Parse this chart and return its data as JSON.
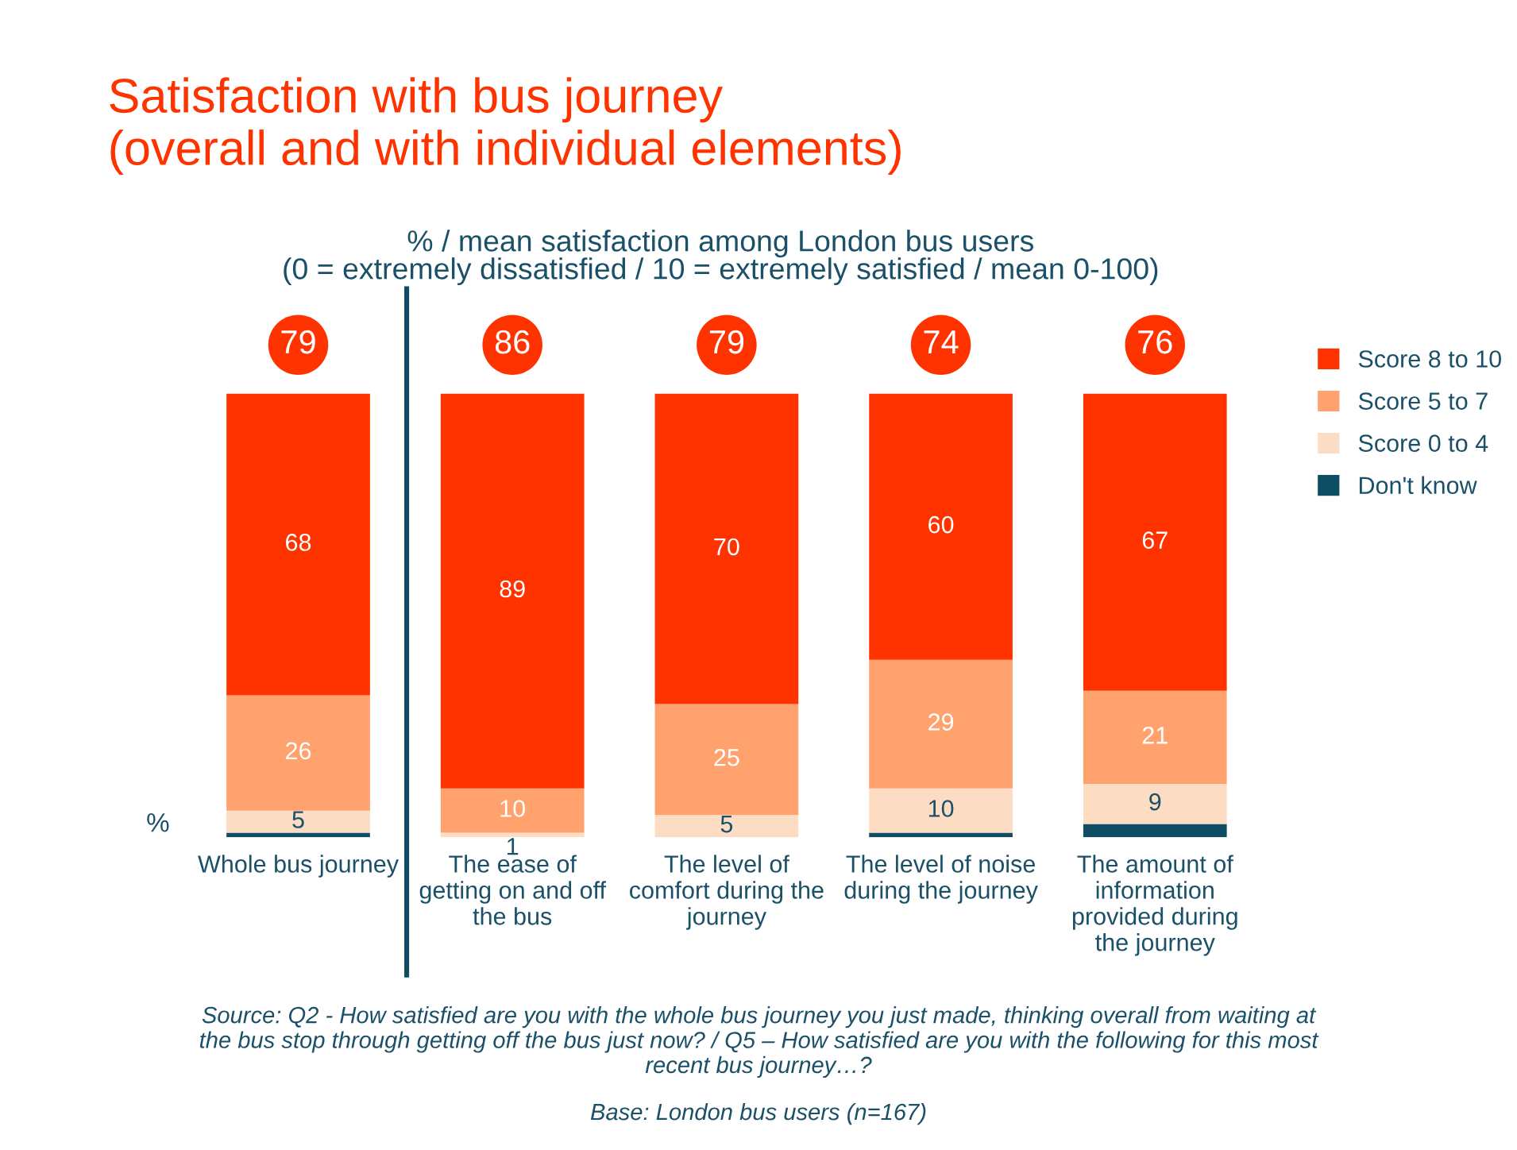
{
  "chart_data": {
    "type": "bar",
    "stacked": true,
    "title": "Satisfaction with bus journey\n(overall and with individual elements)",
    "subtitle": "% / mean satisfaction among London bus users\n(0 = extremely dissatisfied / 10 = extremely satisfied / mean 0-100)",
    "ylabel": "%",
    "categories": [
      "Whole bus journey",
      "The ease of getting on and off the bus",
      "The level of comfort during the journey",
      "The level of noise during the journey",
      "The amount of information provided during the journey"
    ],
    "series": [
      {
        "name": "Don't know",
        "color": "#0e4d64",
        "values": [
          1,
          0,
          0,
          1,
          3
        ],
        "value_labels": [
          null,
          null,
          null,
          null,
          null
        ]
      },
      {
        "name": "Score 0 to 4",
        "color": "#fcdcc2",
        "values": [
          5,
          1,
          5,
          10,
          9
        ],
        "value_labels": [
          "5",
          "1",
          "5",
          "10",
          "9"
        ]
      },
      {
        "name": "Score 5 to 7",
        "color": "#ffa26e",
        "values": [
          26,
          10,
          25,
          29,
          21
        ],
        "value_labels": [
          "26",
          "10",
          "25",
          "29",
          "21"
        ]
      },
      {
        "name": "Score 8 to 10",
        "color": "#ff3300",
        "values": [
          68,
          89,
          70,
          60,
          67
        ],
        "value_labels": [
          "68",
          "89",
          "70",
          "60",
          "67"
        ]
      }
    ],
    "annotations": [
      "79",
      "86",
      "79",
      "74",
      "76",
      "Source: Q2 - How satisfied are you with the whole bus journey you just made, thinking overall from waiting at the bus stop through getting off the bus just now? / Q5 – How satisfied are you with the following for this most recent bus journey…?",
      "Base: London bus users (n=167)"
    ],
    "legend": "right",
    "grid": false
  }
}
